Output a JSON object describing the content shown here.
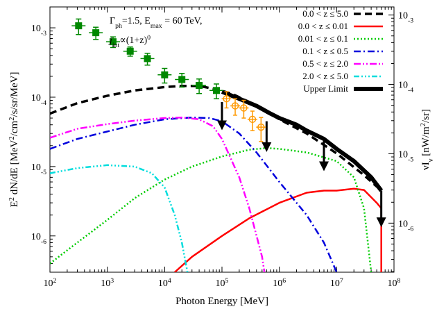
{
  "chart_data": {
    "type": "line",
    "title": "",
    "xlabel": "Photon Energy [MeV]",
    "ylabel": "E² dN/dE [MeV²/cm²/s/sr/MeV]",
    "ylabel_parts": [
      "E",
      "2",
      " dN/dE [MeV",
      "2",
      "/cm",
      "2",
      "/s/sr/MeV]"
    ],
    "y2label": "νI_ν [nW/m²/sr]",
    "y2label_parts": [
      "νI",
      "ν",
      " [nW/m",
      "2",
      "/sr]"
    ],
    "xscale": "log",
    "yscale": "log",
    "xlim": [
      100,
      100000000
    ],
    "ylim": [
      3e-07,
      0.002
    ],
    "x_tick_exponents": [
      2,
      3,
      4,
      5,
      6,
      7,
      8
    ],
    "y_tick_exponents": [
      -6,
      -5,
      -4,
      -3
    ],
    "y2_tick_exponents": [
      -6,
      -5,
      -4,
      -3
    ],
    "y2_factor": 0.654,
    "grid": false,
    "legend_position": "top-right",
    "annotation_lines": [
      [
        "Γ",
        "ph",
        "=1.5, E",
        "max",
        " = 60 TeV,"
      ],
      [
        "j",
        "int",
        "∝(1+z)",
        "0"
      ]
    ],
    "series": [
      {
        "name": "0.0 < z ≤ 5.0",
        "color": "#000000",
        "style": "dashed",
        "points": [
          [
            100,
            5.8e-05
          ],
          [
            300,
            8.2e-05
          ],
          [
            1000,
            0.000105
          ],
          [
            3000,
            0.000125
          ],
          [
            10000,
            0.00014
          ],
          [
            20000,
            0.000145
          ],
          [
            40000,
            0.000145
          ],
          [
            80000,
            0.00013
          ],
          [
            150000,
            0.000112
          ],
          [
            300000,
            8.5e-05
          ],
          [
            600000,
            6.2e-05
          ],
          [
            1000000,
            4.8e-05
          ],
          [
            3000000,
            3e-05
          ],
          [
            10000000,
            1.55e-05
          ],
          [
            30000000,
            7.5e-06
          ],
          [
            60000000,
            4.5e-06
          ]
        ]
      },
      {
        "name": "0.0 < z ≤ 0.01",
        "color": "#ff0000",
        "style": "solid",
        "points": [
          [
            15000,
            3e-07
          ],
          [
            30000,
            5e-07
          ],
          [
            100000,
            1e-06
          ],
          [
            300000,
            1.8e-06
          ],
          [
            1000000,
            3e-06
          ],
          [
            3000000,
            4.2e-06
          ],
          [
            6000000,
            4.5e-06
          ],
          [
            10000000,
            4.5e-06
          ],
          [
            20000000,
            4.8e-06
          ],
          [
            30000000,
            4.6e-06
          ],
          [
            50000000,
            3e-06
          ],
          [
            60000000,
            2.5e-06
          ],
          [
            60000000,
            3e-07
          ]
        ]
      },
      {
        "name": "0.01 < z ≤ 0.1",
        "color": "#00cc00",
        "style": "dotted",
        "points": [
          [
            100,
            4e-07
          ],
          [
            300,
            8e-07
          ],
          [
            1000,
            1.7e-06
          ],
          [
            3000,
            3.5e-06
          ],
          [
            10000,
            6.5e-06
          ],
          [
            30000,
            1e-05
          ],
          [
            100000,
            1.4e-05
          ],
          [
            300000,
            1.75e-05
          ],
          [
            600000,
            1.85e-05
          ],
          [
            1000000,
            1.8e-05
          ],
          [
            3000000,
            1.6e-05
          ],
          [
            10000000,
            1.2e-05
          ],
          [
            20000000,
            7e-06
          ],
          [
            30000000,
            2.5e-06
          ],
          [
            40000000,
            3e-07
          ]
        ]
      },
      {
        "name": "0.1 < z ≤ 0.5",
        "color": "#0000dd",
        "style": "dashdot",
        "points": [
          [
            100,
            1.8e-05
          ],
          [
            300,
            2.5e-05
          ],
          [
            1000,
            3.2e-05
          ],
          [
            3000,
            4e-05
          ],
          [
            10000,
            4.8e-05
          ],
          [
            30000,
            5.1e-05
          ],
          [
            60000,
            5e-05
          ],
          [
            100000,
            4.5e-05
          ],
          [
            200000,
            3e-05
          ],
          [
            400000,
            1.6e-05
          ],
          [
            1000000,
            6e-06
          ],
          [
            3000000,
            2e-06
          ],
          [
            6000000,
            8e-07
          ],
          [
            10000000,
            3e-07
          ]
        ]
      },
      {
        "name": "0.5 < z ≤ 2.0",
        "color": "#ff00ff",
        "style": "dashdotdot",
        "points": [
          [
            100,
            2.6e-05
          ],
          [
            300,
            3.5e-05
          ],
          [
            1000,
            4.1e-05
          ],
          [
            3000,
            4.6e-05
          ],
          [
            10000,
            5e-05
          ],
          [
            20000,
            5.1e-05
          ],
          [
            40000,
            4.8e-05
          ],
          [
            70000,
            3.8e-05
          ],
          [
            100000,
            2.5e-05
          ],
          [
            200000,
            7e-06
          ],
          [
            300000,
            2.5e-06
          ],
          [
            500000,
            5e-07
          ],
          [
            550000,
            3e-07
          ]
        ]
      },
      {
        "name": "2.0 < z ≤ 5.0",
        "color": "#00dddd",
        "style": "dashdotdotdot",
        "points": [
          [
            100,
            8e-06
          ],
          [
            300,
            9.5e-06
          ],
          [
            1000,
            1.05e-05
          ],
          [
            3000,
            1e-05
          ],
          [
            6000,
            8e-06
          ],
          [
            10000,
            5e-06
          ],
          [
            15000,
            2e-06
          ],
          [
            20000,
            8e-07
          ],
          [
            25000,
            3e-07
          ]
        ]
      },
      {
        "name": "Upper Limit",
        "color": "#000000",
        "style": "thick",
        "points": [
          [
            100000,
            0.00012
          ],
          [
            200000,
            9.5e-05
          ],
          [
            400000,
            7.5e-05
          ],
          [
            700000,
            5.8e-05
          ],
          [
            1000000,
            5e-05
          ],
          [
            2000000,
            4e-05
          ],
          [
            3000000,
            3.3e-05
          ],
          [
            6000000,
            2.5e-05
          ],
          [
            10000000,
            1.8e-05
          ],
          [
            20000000,
            1.2e-05
          ],
          [
            40000000,
            7e-06
          ],
          [
            60000000,
            4.5e-06
          ]
        ]
      }
    ],
    "arrows": [
      {
        "x": 100000,
        "y_from": 8.5e-05,
        "y_to": 3.5e-05
      },
      {
        "x": 600000,
        "y_from": 4.5e-05,
        "y_to": 1.7e-05
      },
      {
        "x": 6000000,
        "y_from": 2.4e-05,
        "y_to": 9e-06
      },
      {
        "x": 60000000,
        "y_from": 4.5e-06,
        "y_to": 1.4e-06
      }
    ],
    "fermi_points": [
      {
        "x": 316,
        "y": 0.00107,
        "yerr": [
          0.00027,
          0.00027
        ]
      },
      {
        "x": 631,
        "y": 0.00085,
        "yerr": [
          0.00017,
          0.00017
        ]
      },
      {
        "x": 1260,
        "y": 0.00063,
        "yerr": [
          0.00011,
          0.00011
        ]
      },
      {
        "x": 2510,
        "y": 0.00046,
        "yerr": [
          7e-05,
          7e-05
        ]
      },
      {
        "x": 5010,
        "y": 0.00036,
        "yerr": [
          7e-05,
          7e-05
        ]
      },
      {
        "x": 10000,
        "y": 0.00021,
        "yerr": [
          5e-05,
          5e-05
        ]
      },
      {
        "x": 20000,
        "y": 0.00018,
        "yerr": [
          4e-05,
          4e-05
        ]
      },
      {
        "x": 40000,
        "y": 0.000148,
        "yerr": [
          3.5e-05,
          3.5e-05
        ]
      },
      {
        "x": 80000,
        "y": 0.000125,
        "yerr": [
          3e-05,
          3e-05
        ]
      }
    ],
    "hess_points": [
      {
        "x": 120000,
        "y": 9.5e-05,
        "yerr": [
          2.5e-05,
          2.5e-05
        ]
      },
      {
        "x": 170000,
        "y": 7.5e-05,
        "yerr": [
          2e-05,
          2e-05
        ]
      },
      {
        "x": 240000,
        "y": 7e-05,
        "yerr": [
          2e-05,
          2e-05
        ]
      },
      {
        "x": 340000,
        "y": 4.8e-05,
        "yerr": [
          1.5e-05,
          1.5e-05
        ]
      },
      {
        "x": 480000,
        "y": 3.7e-05,
        "yerr": [
          1.4e-05,
          1.4e-05
        ]
      }
    ],
    "colors": {
      "fermi": "#008800",
      "hess": "#ff9900"
    }
  }
}
